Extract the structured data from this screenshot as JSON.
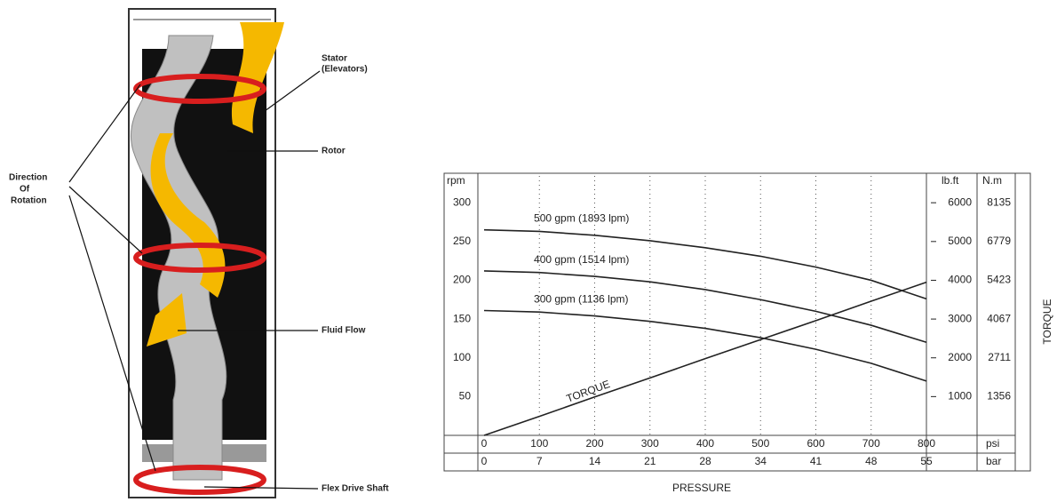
{
  "diagram": {
    "labels": {
      "stator": [
        "Stator",
        "(Elevators)"
      ],
      "rotor": "Rotor",
      "rotation": [
        "Direction",
        "Of",
        "Rotation"
      ],
      "fluid": "Fluid Flow",
      "shaft": "Flex Drive Shaft"
    }
  },
  "chart_data": {
    "type": "line",
    "y_unit": "rpm",
    "y2_unit": "lb.ft",
    "y2_unit_alt": "N.m",
    "y2_title": "TORQUE",
    "x_unit": "psi",
    "x_unit_alt": "bar",
    "x_title": "PRESSURE",
    "x": [
      0,
      100,
      200,
      300,
      400,
      500,
      600,
      700,
      800
    ],
    "x_alt_labels": [
      "0",
      "7",
      "14",
      "21",
      "28",
      "34",
      "41",
      "48",
      "55"
    ],
    "xlim": [
      0,
      800
    ],
    "xticks": [
      0,
      100,
      200,
      300,
      400,
      500,
      600,
      700,
      800
    ],
    "ylim": [
      0,
      330
    ],
    "yticks": [
      50,
      100,
      150,
      200,
      250,
      300
    ],
    "y2lim": [
      0,
      6600
    ],
    "y2ticks": [
      1000,
      2000,
      3000,
      4000,
      5000,
      6000
    ],
    "y2_alt_labels": [
      "1356",
      "2711",
      "4067",
      "5423",
      "6779",
      "8135"
    ],
    "grid": true,
    "series": [
      {
        "name": "500 gpm (1893 lpm)",
        "color": "#222222",
        "values": [
          265,
          263,
          258,
          251,
          242,
          231,
          217,
          200,
          176
        ]
      },
      {
        "name": "400 gpm (1514 lpm)",
        "color": "#222222",
        "values": [
          212,
          210,
          205,
          198,
          188,
          175,
          160,
          142,
          120
        ]
      },
      {
        "name": "300 gpm (1136 lpm)",
        "color": "#222222",
        "values": [
          161,
          159,
          154,
          147,
          138,
          126,
          111,
          93,
          70
        ]
      },
      {
        "name": "TORQUE",
        "color": "#222222",
        "axis": "y2",
        "values": [
          0,
          490,
          990,
          1480,
          1980,
          2470,
          2960,
          3460,
          3950
        ]
      }
    ]
  }
}
